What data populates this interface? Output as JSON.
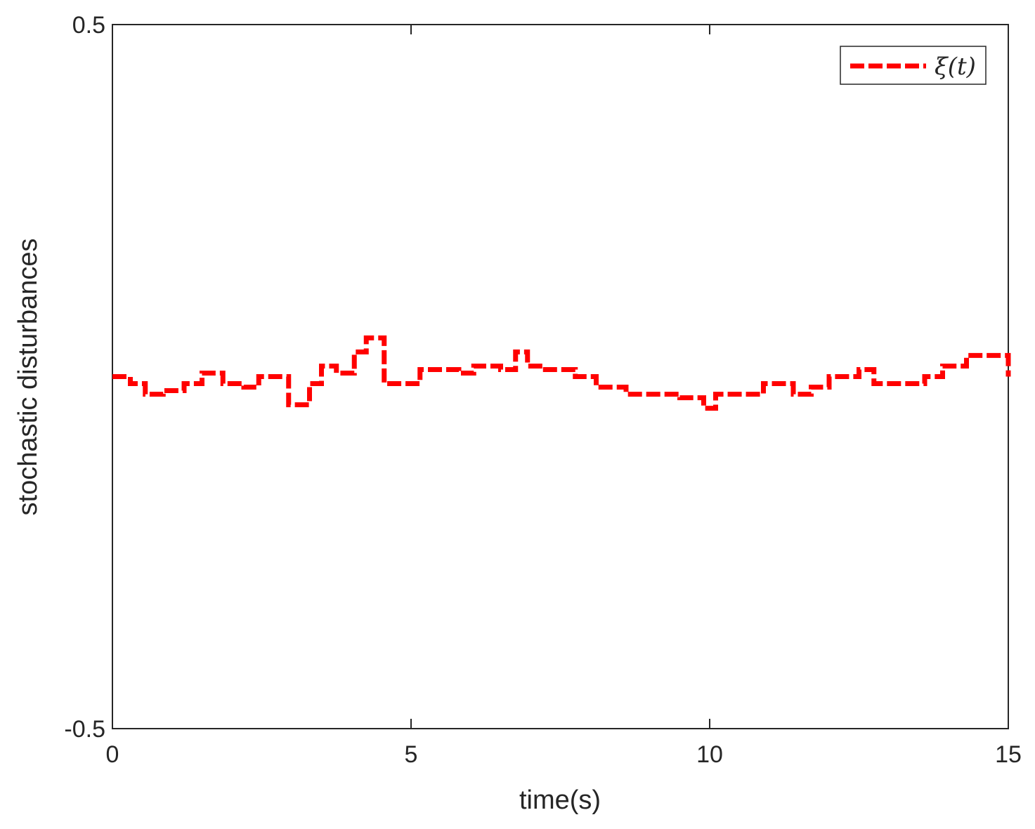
{
  "chart_data": {
    "type": "line",
    "xlabel": "time(s)",
    "ylabel": "stochastic disturbances",
    "xlim": [
      0,
      15
    ],
    "ylim": [
      -0.5,
      0.5
    ],
    "x_ticks": [
      0,
      5,
      10,
      15
    ],
    "x_tick_labels": [
      "0",
      "5",
      "10",
      "15"
    ],
    "y_ticks": [
      -0.5,
      0.5
    ],
    "y_tick_labels": [
      "-0.5",
      "0.5"
    ],
    "grid": false,
    "legend_position": "top-right",
    "series": [
      {
        "name": "ξ(t)",
        "color": "#ff0000",
        "line_style": "dashed",
        "step": true,
        "x": [
          0,
          0.3,
          0.55,
          0.85,
          1.2,
          1.5,
          1.85,
          2.2,
          2.45,
          2.95,
          3.3,
          3.5,
          3.75,
          4.05,
          4.25,
          4.55,
          4.9,
          5.15,
          5.5,
          5.8,
          6.05,
          6.5,
          6.75,
          6.95,
          7.25,
          7.75,
          8.1,
          8.6,
          9.5,
          9.9,
          10.1,
          10.3,
          10.9,
          11.4,
          11.7,
          12.0,
          12.5,
          12.75,
          12.95,
          13.6,
          13.9,
          14.3,
          14.65,
          15.0
        ],
        "y": [
          0.0,
          -0.01,
          -0.025,
          -0.02,
          -0.01,
          0.005,
          -0.01,
          -0.015,
          0.0,
          -0.04,
          -0.01,
          0.015,
          0.005,
          0.035,
          0.055,
          -0.01,
          -0.01,
          0.01,
          0.01,
          0.005,
          0.015,
          0.01,
          0.035,
          0.015,
          0.01,
          0.0,
          -0.015,
          -0.025,
          -0.03,
          -0.045,
          -0.025,
          -0.025,
          -0.01,
          -0.025,
          -0.015,
          0.0,
          0.01,
          -0.01,
          -0.01,
          0.0,
          0.015,
          0.03,
          0.03,
          0.0
        ]
      }
    ]
  }
}
